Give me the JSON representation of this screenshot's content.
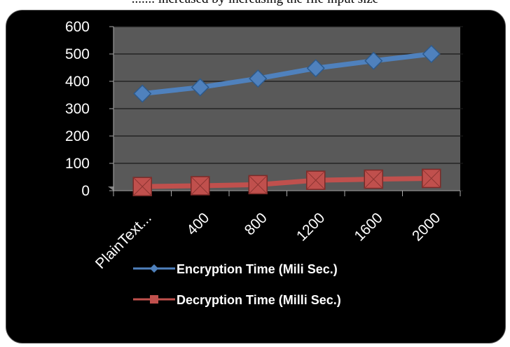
{
  "caption": "....... increased by increasing the file input size",
  "chart_data": {
    "type": "line",
    "categories": [
      "PlainText...",
      "400",
      "800",
      "1200",
      "1600",
      "2000"
    ],
    "ylim": [
      0,
      600
    ],
    "yticks": [
      "0",
      "100",
      "200",
      "300",
      "400",
      "500",
      "600"
    ],
    "grid": true,
    "legend_position": "bottom",
    "series": [
      {
        "name": "Encryption Time (Mili Sec.)",
        "values": [
          355,
          378,
          410,
          448,
          475,
          500
        ],
        "color": "#4f81bd",
        "marker": "diamond"
      },
      {
        "name": "Decryption Time (Milli Sec.)",
        "values": [
          15,
          18,
          22,
          38,
          42,
          45
        ],
        "color": "#c0504d",
        "marker": "square"
      }
    ],
    "plot_background": "#595959",
    "background": "#000000"
  }
}
